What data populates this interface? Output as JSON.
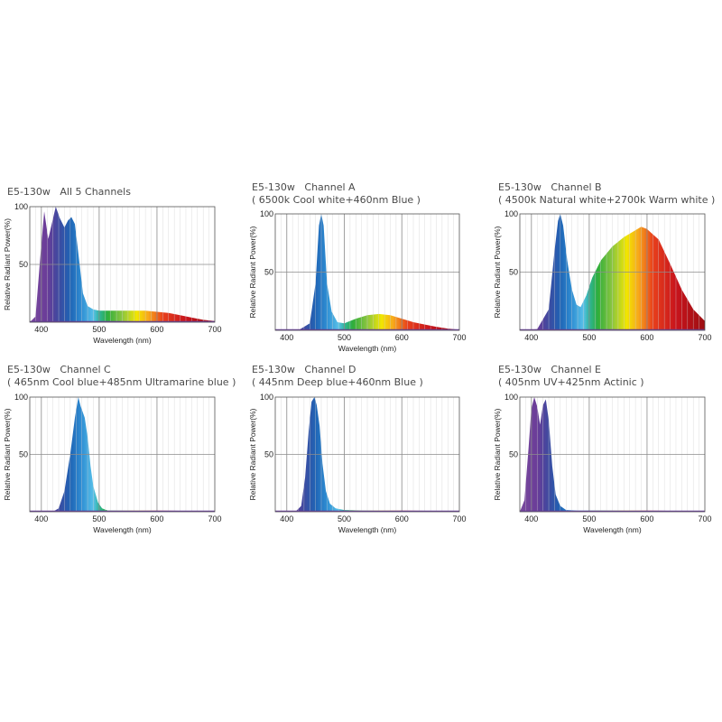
{
  "colors": {
    "panel_highlight_bg": "#dedede",
    "grid_minor": "#cfcfcf",
    "grid_major": "#8c8c8c",
    "frame": "#555555",
    "baseline": "#6a3ea0",
    "spectrum_stops": [
      {
        "nm": 380,
        "color": "#7a4a9e"
      },
      {
        "nm": 410,
        "color": "#6a3c98"
      },
      {
        "nm": 430,
        "color": "#3d4aa0"
      },
      {
        "nm": 450,
        "color": "#1f64b5"
      },
      {
        "nm": 470,
        "color": "#2f8fd4"
      },
      {
        "nm": 490,
        "color": "#58c0e8"
      },
      {
        "nm": 500,
        "color": "#2eb59a"
      },
      {
        "nm": 515,
        "color": "#2fae3a"
      },
      {
        "nm": 540,
        "color": "#8cc63f"
      },
      {
        "nm": 565,
        "color": "#f2e600"
      },
      {
        "nm": 585,
        "color": "#f7a81b"
      },
      {
        "nm": 610,
        "color": "#e8401c"
      },
      {
        "nm": 650,
        "color": "#c8141c"
      },
      {
        "nm": 700,
        "color": "#9c0e12"
      }
    ]
  },
  "chart_data": [
    {
      "type": "area",
      "highlighted": true,
      "title": "E5-130w   All 5 Channels",
      "subtitle": "",
      "xlabel": "Wavelength (nm)",
      "ylabel": "Relative Radiant Power(%)",
      "xlim": [
        380,
        700
      ],
      "ylim": [
        0,
        100
      ],
      "xticks": [
        "400",
        "500",
        "600",
        "700"
      ],
      "yticks": [
        "100",
        "50"
      ],
      "series": [
        {
          "x": [
            380,
            390,
            398,
            405,
            412,
            418,
            425,
            432,
            440,
            446,
            452,
            458,
            465,
            472,
            480,
            490,
            500,
            520,
            540,
            560,
            580,
            600,
            620,
            640,
            660,
            680,
            700
          ],
          "y": [
            0,
            5,
            55,
            96,
            72,
            85,
            100,
            90,
            82,
            88,
            91,
            85,
            55,
            25,
            14,
            11,
            10,
            10,
            10,
            10,
            10,
            9,
            8,
            6,
            4,
            2,
            1
          ]
        }
      ]
    },
    {
      "type": "area",
      "highlighted": false,
      "title": "E5-130w   Channel A",
      "subtitle": "( 6500k Cool white+460nm Blue )",
      "xlabel": "Wavelength (nm)",
      "ylabel": "Relative Radiant Power(%)",
      "xlim": [
        380,
        700
      ],
      "ylim": [
        0,
        100
      ],
      "xticks": [
        "400",
        "500",
        "600",
        "700"
      ],
      "yticks": [
        "100",
        "50"
      ],
      "series": [
        {
          "x": [
            380,
            420,
            440,
            450,
            456,
            460,
            464,
            470,
            478,
            488,
            500,
            520,
            540,
            560,
            580,
            600,
            620,
            640,
            660,
            680,
            700
          ],
          "y": [
            0,
            0,
            6,
            40,
            90,
            100,
            90,
            40,
            16,
            7,
            6,
            10,
            13,
            14,
            13,
            10,
            7,
            5,
            3,
            1.5,
            0.5
          ]
        }
      ]
    },
    {
      "type": "area",
      "highlighted": false,
      "title": "E5-130w   Channel B",
      "subtitle": "( 4500k Natural white+2700k Warm white )",
      "xlabel": "",
      "ylabel": "Relative Radiant Power(%)",
      "xlim": [
        380,
        700
      ],
      "ylim": [
        0,
        100
      ],
      "xticks": [
        "400",
        "500",
        "600",
        "700"
      ],
      "yticks": [
        "100",
        "50"
      ],
      "series": [
        {
          "x": [
            380,
            410,
            430,
            440,
            446,
            450,
            455,
            462,
            470,
            478,
            485,
            495,
            505,
            520,
            540,
            560,
            580,
            590,
            600,
            620,
            640,
            660,
            680,
            700
          ],
          "y": [
            0,
            1,
            18,
            68,
            94,
            100,
            90,
            60,
            35,
            22,
            20,
            30,
            45,
            60,
            72,
            80,
            86,
            89,
            87,
            78,
            57,
            35,
            18,
            8
          ]
        }
      ]
    },
    {
      "type": "area",
      "highlighted": false,
      "title": "E5-130w   Channel C",
      "subtitle": "( 465nm Cool blue+485nm Ultramarine blue )",
      "xlabel": "Wavelength (nm)",
      "ylabel": "Relative Radiant Power(%)",
      "xlim": [
        380,
        700
      ],
      "ylim": [
        0,
        100
      ],
      "xticks": [
        "400",
        "500",
        "600",
        "700"
      ],
      "yticks": [
        "100",
        "50"
      ],
      "series": [
        {
          "x": [
            380,
            420,
            430,
            440,
            450,
            458,
            464,
            468,
            475,
            480,
            485,
            490,
            498,
            505,
            515,
            530,
            560,
            600,
            700
          ],
          "y": [
            0,
            0,
            3,
            18,
            50,
            82,
            100,
            92,
            82,
            65,
            40,
            22,
            8,
            3,
            1,
            1,
            1,
            1,
            0.5
          ]
        }
      ]
    },
    {
      "type": "area",
      "highlighted": false,
      "title": "E5-130w   Channel D",
      "subtitle": "( 445nm Deep blue+460nm Blue )",
      "xlabel": "Wavelength (nm)",
      "ylabel": "Relative Radiant Power(%)",
      "xlim": [
        380,
        700
      ],
      "ylim": [
        0,
        100
      ],
      "xticks": [
        "400",
        "500",
        "600",
        "700"
      ],
      "yticks": [
        "100",
        "50"
      ],
      "series": [
        {
          "x": [
            380,
            415,
            425,
            432,
            438,
            443,
            448,
            452,
            457,
            462,
            468,
            475,
            485,
            500,
            530,
            600,
            700
          ],
          "y": [
            0,
            0,
            5,
            30,
            70,
            96,
            100,
            93,
            75,
            42,
            18,
            7,
            3,
            1.5,
            1,
            1,
            0.5
          ]
        }
      ]
    },
    {
      "type": "area",
      "highlighted": false,
      "title": "E5-130w   Channel E",
      "subtitle": "( 405nm UV+425nm Actinic )",
      "xlabel": "Wavelength (nm)",
      "ylabel": "Relative Radiant Power(%)",
      "xlim": [
        380,
        700
      ],
      "ylim": [
        0,
        100
      ],
      "xticks": [
        "400",
        "500",
        "600",
        "700"
      ],
      "yticks": [
        "100",
        "50"
      ],
      "series": [
        {
          "x": [
            380,
            388,
            395,
            400,
            405,
            410,
            415,
            420,
            425,
            430,
            436,
            442,
            450,
            460,
            480,
            520,
            600,
            700
          ],
          "y": [
            0,
            10,
            55,
            90,
            100,
            92,
            76,
            93,
            98,
            80,
            40,
            15,
            5,
            1.5,
            1,
            1,
            1,
            0.5
          ]
        }
      ]
    }
  ]
}
